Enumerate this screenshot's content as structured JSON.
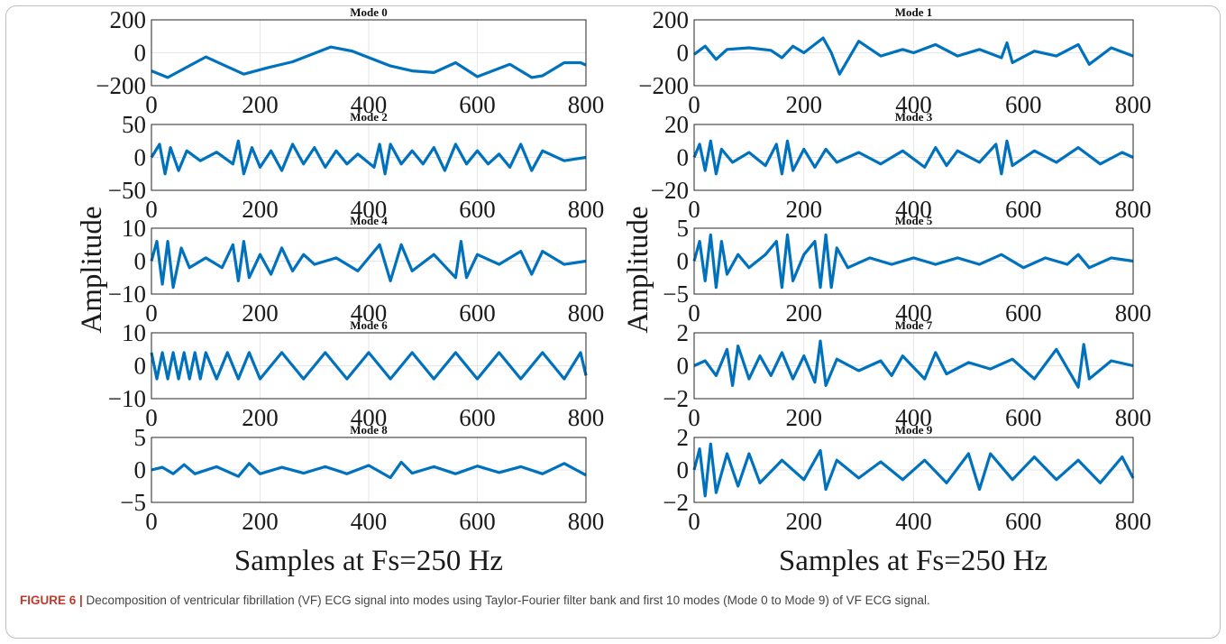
{
  "chart_data": {
    "type": "line",
    "ylabel": "Amplitude",
    "xlabel": "Samples at Fs=250 Hz",
    "series_color": "#0072BD",
    "xlim": [
      0,
      800
    ],
    "xticks": [
      0,
      200,
      400,
      600,
      800
    ],
    "panels": [
      {
        "title": "Mode 0",
        "ylim": [
          -200,
          200
        ],
        "yticks": [
          -200,
          0,
          200
        ],
        "grid": true,
        "x": [
          0,
          30,
          100,
          170,
          215,
          260,
          330,
          370,
          440,
          480,
          520,
          560,
          600,
          660,
          700,
          720,
          760,
          790,
          800
        ],
        "y": [
          -110,
          -150,
          -25,
          -130,
          -90,
          -55,
          35,
          10,
          -80,
          -110,
          -120,
          -60,
          -145,
          -70,
          -150,
          -140,
          -60,
          -60,
          -75
        ]
      },
      {
        "title": "Mode 1",
        "ylim": [
          -200,
          200
        ],
        "yticks": [
          -200,
          0,
          200
        ],
        "grid": true,
        "x": [
          0,
          20,
          40,
          60,
          100,
          140,
          160,
          180,
          200,
          235,
          250,
          265,
          300,
          340,
          380,
          400,
          440,
          480,
          520,
          560,
          570,
          580,
          620,
          660,
          700,
          720,
          760,
          800
        ],
        "y": [
          -10,
          40,
          -40,
          20,
          30,
          15,
          -30,
          40,
          0,
          90,
          0,
          -130,
          70,
          -20,
          20,
          0,
          50,
          -20,
          20,
          -30,
          60,
          -60,
          10,
          -20,
          50,
          -70,
          30,
          -20
        ]
      },
      {
        "title": "Mode 2",
        "ylim": [
          -50,
          50
        ],
        "yticks": [
          -50,
          0,
          50
        ],
        "grid": true,
        "x": [
          0,
          15,
          25,
          35,
          50,
          65,
          90,
          120,
          150,
          160,
          170,
          185,
          200,
          220,
          240,
          260,
          280,
          300,
          320,
          340,
          360,
          380,
          410,
          420,
          430,
          440,
          460,
          480,
          500,
          520,
          540,
          560,
          580,
          600,
          620,
          640,
          660,
          680,
          700,
          720,
          760,
          800
        ],
        "y": [
          0,
          20,
          -25,
          15,
          -20,
          10,
          -5,
          8,
          -10,
          25,
          -25,
          15,
          -15,
          10,
          -20,
          20,
          -10,
          15,
          -15,
          10,
          -10,
          5,
          -15,
          20,
          -25,
          20,
          -10,
          10,
          -10,
          15,
          -20,
          20,
          -10,
          10,
          -10,
          5,
          -15,
          20,
          -20,
          10,
          -5,
          0
        ]
      },
      {
        "title": "Mode 3",
        "ylim": [
          -20,
          20
        ],
        "yticks": [
          -20,
          0,
          20
        ],
        "grid": true,
        "x": [
          0,
          10,
          20,
          30,
          40,
          50,
          70,
          100,
          130,
          150,
          160,
          170,
          180,
          200,
          220,
          240,
          260,
          300,
          340,
          380,
          420,
          440,
          460,
          480,
          520,
          550,
          560,
          570,
          580,
          620,
          660,
          700,
          740,
          780,
          800
        ],
        "y": [
          0,
          8,
          -8,
          10,
          -10,
          5,
          -3,
          3,
          -5,
          8,
          -10,
          10,
          -8,
          5,
          -6,
          5,
          -3,
          3,
          -4,
          4,
          -6,
          6,
          -5,
          4,
          -3,
          8,
          -10,
          10,
          -5,
          4,
          -3,
          6,
          -4,
          3,
          0
        ]
      },
      {
        "title": "Mode 4",
        "ylim": [
          -10,
          10
        ],
        "yticks": [
          -10,
          0,
          10
        ],
        "grid": true,
        "x": [
          0,
          10,
          20,
          30,
          40,
          55,
          70,
          100,
          130,
          150,
          160,
          170,
          180,
          200,
          220,
          240,
          260,
          280,
          300,
          340,
          380,
          420,
          440,
          460,
          480,
          520,
          560,
          570,
          580,
          600,
          640,
          680,
          700,
          720,
          760,
          800
        ],
        "y": [
          0,
          6,
          -7,
          6,
          -8,
          4,
          -2,
          1,
          -2,
          5,
          -6,
          6,
          -5,
          2,
          -4,
          4,
          -3,
          2,
          -1,
          1,
          -3,
          5,
          -6,
          5,
          -3,
          2,
          -5,
          6,
          -5,
          2,
          -1,
          3,
          -4,
          3,
          -1,
          0
        ]
      },
      {
        "title": "Mode 5",
        "ylim": [
          -5,
          5
        ],
        "yticks": [
          -5,
          0,
          5
        ],
        "grid": true,
        "x": [
          0,
          10,
          20,
          30,
          40,
          50,
          60,
          80,
          100,
          130,
          150,
          160,
          170,
          180,
          200,
          220,
          230,
          240,
          250,
          260,
          280,
          320,
          360,
          400,
          440,
          480,
          520,
          560,
          600,
          640,
          680,
          700,
          720,
          760,
          800
        ],
        "y": [
          0,
          3,
          -3,
          4,
          -4,
          3,
          -2,
          1,
          -1,
          1,
          3,
          -4,
          4,
          -3,
          1,
          3,
          -4,
          4,
          -4,
          2,
          -1,
          0.5,
          -0.5,
          0.5,
          -0.5,
          0.5,
          -0.5,
          1,
          -1,
          0.5,
          -0.5,
          1,
          -1,
          0.5,
          0
        ]
      },
      {
        "title": "Mode 6",
        "ylim": [
          -10,
          10
        ],
        "yticks": [
          -10,
          0,
          10
        ],
        "grid": true,
        "x": [
          0,
          10,
          20,
          30,
          40,
          50,
          60,
          70,
          80,
          90,
          100,
          120,
          140,
          160,
          180,
          200,
          240,
          280,
          320,
          360,
          400,
          440,
          480,
          520,
          560,
          600,
          640,
          680,
          720,
          760,
          790,
          800
        ],
        "y": [
          4,
          -4,
          4,
          -4,
          4,
          -4,
          4,
          -4,
          4,
          -4,
          4,
          -4,
          4,
          -4,
          4,
          -4,
          4,
          -4,
          4,
          -4,
          4,
          -4,
          4,
          -4,
          4,
          -4,
          4,
          -4,
          4,
          -4,
          4,
          -3
        ]
      },
      {
        "title": "Mode 7",
        "ylim": [
          -2,
          2
        ],
        "yticks": [
          -2,
          0,
          2
        ],
        "grid": true,
        "x": [
          0,
          20,
          40,
          60,
          70,
          80,
          100,
          120,
          140,
          160,
          180,
          200,
          220,
          230,
          240,
          260,
          300,
          340,
          360,
          380,
          420,
          440,
          460,
          500,
          540,
          580,
          620,
          660,
          700,
          710,
          720,
          760,
          800
        ],
        "y": [
          0,
          0.3,
          -0.6,
          1.0,
          -1.2,
          1.2,
          -0.8,
          0.6,
          -0.6,
          0.8,
          -0.8,
          0.6,
          -1.0,
          1.5,
          -1.2,
          0.4,
          -0.3,
          0.3,
          -0.6,
          0.6,
          -0.8,
          0.8,
          -0.5,
          0.2,
          -0.2,
          0.4,
          -0.8,
          1.0,
          -1.3,
          1.3,
          -0.8,
          0.3,
          0
        ]
      },
      {
        "title": "Mode 8",
        "ylim": [
          -5,
          5
        ],
        "yticks": [
          -5,
          0,
          5
        ],
        "grid": true,
        "x": [
          0,
          20,
          40,
          60,
          80,
          120,
          160,
          180,
          200,
          240,
          280,
          320,
          360,
          400,
          440,
          460,
          480,
          520,
          560,
          600,
          640,
          680,
          720,
          760,
          800
        ],
        "y": [
          0,
          0.4,
          -0.6,
          0.8,
          -0.6,
          0.5,
          -1.0,
          1.0,
          -0.6,
          0.4,
          -0.5,
          0.5,
          -0.6,
          0.7,
          -1.2,
          1.2,
          -0.5,
          0.5,
          -0.6,
          0.6,
          -0.4,
          0.5,
          -0.6,
          1.0,
          -0.8
        ]
      },
      {
        "title": "Mode 9",
        "ylim": [
          -2,
          2
        ],
        "yticks": [
          -2,
          0,
          2
        ],
        "grid": true,
        "x": [
          0,
          10,
          20,
          30,
          40,
          60,
          80,
          100,
          120,
          160,
          200,
          230,
          240,
          260,
          300,
          340,
          380,
          420,
          460,
          500,
          520,
          540,
          580,
          620,
          660,
          700,
          740,
          780,
          800
        ],
        "y": [
          0,
          1.3,
          -1.6,
          1.6,
          -1.4,
          1.0,
          -1.0,
          1.0,
          -0.8,
          0.6,
          -0.6,
          1.2,
          -1.2,
          0.6,
          -0.5,
          0.5,
          -0.6,
          0.6,
          -0.8,
          1.0,
          -1.2,
          1.0,
          -0.6,
          0.8,
          -0.6,
          0.6,
          -0.8,
          0.8,
          -0.5
        ]
      }
    ]
  },
  "caption": {
    "label": "FIGURE 6 |",
    "text": " Decomposition of ventricular fibrillation (VF) ECG signal into modes using Taylor-Fourier filter bank and first 10 modes (Mode 0 to Mode 9) of VF ECG signal."
  }
}
